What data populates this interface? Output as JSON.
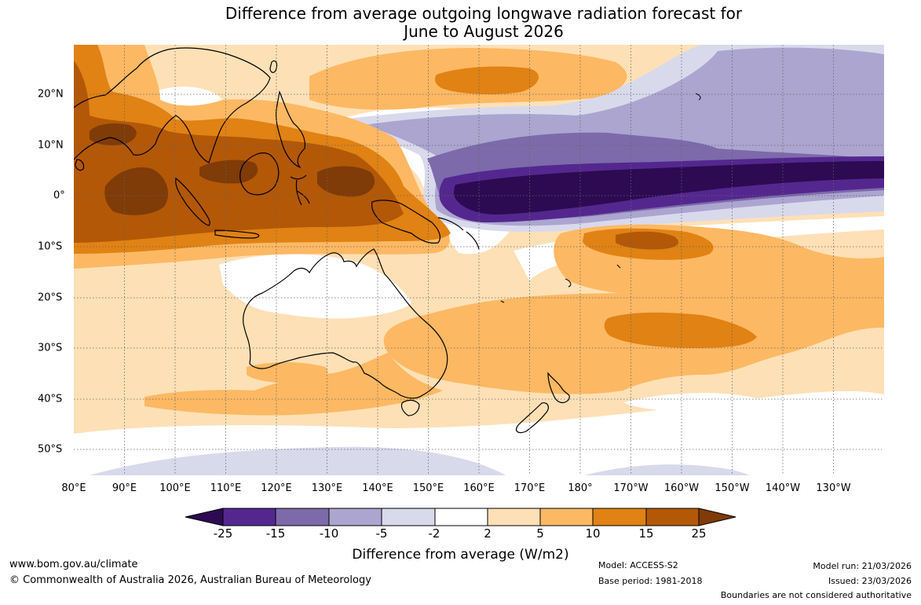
{
  "title": {
    "line1": "Difference from average outgoing longwave radiation forecast for",
    "line2": "June to August 2026"
  },
  "axes": {
    "lon_labels": [
      "80°E",
      "90°E",
      "100°E",
      "110°E",
      "120°E",
      "130°E",
      "140°E",
      "150°E",
      "160°E",
      "170°E",
      "180°",
      "170°W",
      "160°W",
      "150°W",
      "140°W",
      "130°W"
    ],
    "lat_labels": [
      "20°N",
      "10°N",
      "0°",
      "10°S",
      "20°S",
      "30°S",
      "40°S",
      "50°S"
    ]
  },
  "legend": {
    "colors": {
      "lt_m25": "#2d0a52",
      "m25_m15": "#54278f",
      "m15_m10": "#7c6aaa",
      "m10_m5": "#aba5d0",
      "m5_m2": "#d9d9ec",
      "m2_2": "#ffffff",
      "p2_5": "#fee0b6",
      "p5_10": "#fdb863",
      "p10_15": "#e08214",
      "p15_25": "#b35806",
      "gt_25": "#7f3b08"
    },
    "ticks": [
      "-25",
      "-15",
      "-10",
      "-5",
      "-2",
      "2",
      "5",
      "10",
      "15",
      "25"
    ],
    "units_label": "Difference from average (W/m2)"
  },
  "footer": {
    "website": "www.bom.gov.au/climate",
    "copyright": "© Commonwealth of Australia 2026, Australian Bureau of Meteorology",
    "model": "Model: ACCESS-S2",
    "base_period": "Base period: 1981-2018",
    "model_run": "Model run: 21/03/2026",
    "issued": "Issued: 23/03/2026",
    "disclaimer": "Boundaries are not considered authoritative"
  }
}
